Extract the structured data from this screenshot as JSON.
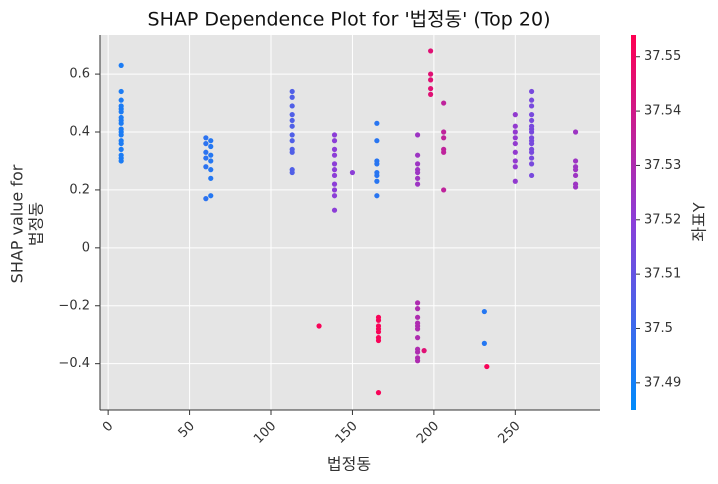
{
  "chart_data": {
    "type": "scatter",
    "title": "SHAP Dependence Plot for '법정동' (Top 20)",
    "xlabel": "법정동",
    "ylabel": [
      "SHAP value for",
      "법정동"
    ],
    "x": [
      8,
      8,
      8,
      8,
      8,
      8,
      8,
      8,
      8,
      8,
      8,
      8,
      8,
      8,
      8,
      8,
      8,
      8,
      60,
      60,
      60,
      60,
      60,
      60,
      63,
      63,
      63,
      63,
      63,
      63,
      63,
      113,
      113,
      113,
      113,
      113,
      113,
      113,
      113,
      113,
      113,
      113,
      113,
      139,
      139,
      139,
      139,
      139,
      139,
      139,
      139,
      139,
      139,
      139,
      129.5,
      150,
      165,
      165,
      165,
      165,
      165,
      165,
      165,
      165,
      166,
      166,
      166,
      166,
      166,
      166,
      166,
      166,
      190,
      190,
      190,
      190,
      190,
      190,
      190,
      190,
      190,
      190,
      190,
      190,
      190,
      190,
      190,
      190,
      190,
      190,
      194,
      198,
      198,
      198,
      198,
      198,
      206,
      206,
      206,
      206,
      206,
      206,
      231,
      231,
      232.5,
      250,
      250,
      250,
      250,
      250,
      250,
      250,
      250,
      250,
      260,
      260,
      260,
      260,
      260,
      260,
      260,
      260,
      260,
      260,
      260,
      260,
      260,
      260,
      260,
      260,
      287,
      287,
      287,
      287,
      287,
      287,
      287
    ],
    "y": [
      0.63,
      0.54,
      0.51,
      0.49,
      0.48,
      0.47,
      0.45,
      0.44,
      0.43,
      0.41,
      0.4,
      0.39,
      0.37,
      0.36,
      0.34,
      0.32,
      0.31,
      0.3,
      0.38,
      0.36,
      0.33,
      0.31,
      0.28,
      0.17,
      0.37,
      0.35,
      0.32,
      0.3,
      0.27,
      0.24,
      0.18,
      0.54,
      0.52,
      0.49,
      0.46,
      0.44,
      0.42,
      0.39,
      0.37,
      0.34,
      0.33,
      0.27,
      0.26,
      0.39,
      0.37,
      0.34,
      0.32,
      0.29,
      0.27,
      0.25,
      0.22,
      0.2,
      0.18,
      0.13,
      -0.27,
      0.26,
      0.43,
      0.37,
      0.3,
      0.29,
      0.26,
      0.25,
      0.23,
      0.18,
      -0.24,
      -0.25,
      -0.27,
      -0.28,
      -0.29,
      -0.31,
      -0.32,
      -0.5,
      0.39,
      0.32,
      0.29,
      0.27,
      0.26,
      0.24,
      0.22,
      -0.19,
      -0.21,
      -0.24,
      -0.26,
      -0.27,
      -0.28,
      -0.31,
      -0.35,
      -0.36,
      -0.38,
      -0.39,
      -0.355,
      0.68,
      0.6,
      0.58,
      0.55,
      0.53,
      0.5,
      0.4,
      0.38,
      0.34,
      0.33,
      0.2,
      -0.22,
      -0.33,
      -0.41,
      0.46,
      0.42,
      0.4,
      0.38,
      0.36,
      0.33,
      0.3,
      0.28,
      0.23,
      0.54,
      0.51,
      0.49,
      0.46,
      0.44,
      0.42,
      0.41,
      0.4,
      0.38,
      0.37,
      0.36,
      0.34,
      0.33,
      0.31,
      0.29,
      0.25,
      0.4,
      0.3,
      0.28,
      0.27,
      0.25,
      0.22,
      0.21
    ],
    "color_values": [
      37.492,
      37.492,
      37.492,
      37.492,
      37.492,
      37.492,
      37.492,
      37.492,
      37.492,
      37.492,
      37.492,
      37.492,
      37.492,
      37.492,
      37.492,
      37.492,
      37.492,
      37.492,
      37.496,
      37.496,
      37.496,
      37.496,
      37.496,
      37.496,
      37.494,
      37.494,
      37.494,
      37.494,
      37.494,
      37.494,
      37.494,
      37.505,
      37.505,
      37.505,
      37.505,
      37.505,
      37.505,
      37.505,
      37.505,
      37.505,
      37.505,
      37.505,
      37.505,
      37.52,
      37.52,
      37.52,
      37.52,
      37.52,
      37.52,
      37.52,
      37.52,
      37.52,
      37.52,
      37.52,
      37.552,
      37.52,
      37.495,
      37.495,
      37.495,
      37.495,
      37.495,
      37.495,
      37.495,
      37.495,
      37.552,
      37.552,
      37.552,
      37.552,
      37.552,
      37.552,
      37.552,
      37.552,
      37.525,
      37.525,
      37.525,
      37.525,
      37.525,
      37.525,
      37.525,
      37.53,
      37.53,
      37.53,
      37.53,
      37.53,
      37.53,
      37.53,
      37.53,
      37.53,
      37.53,
      37.53,
      37.545,
      37.545,
      37.545,
      37.545,
      37.545,
      37.545,
      37.535,
      37.535,
      37.535,
      37.535,
      37.535,
      37.535,
      37.494,
      37.494,
      37.552,
      37.522,
      37.522,
      37.522,
      37.522,
      37.522,
      37.522,
      37.522,
      37.522,
      37.522,
      37.515,
      37.515,
      37.515,
      37.515,
      37.515,
      37.515,
      37.515,
      37.515,
      37.515,
      37.515,
      37.515,
      37.515,
      37.515,
      37.515,
      37.515,
      37.515,
      37.525,
      37.525,
      37.525,
      37.525,
      37.525,
      37.525,
      37.525
    ],
    "xlim": [
      -5,
      302
    ],
    "ylim": [
      -0.56,
      0.735
    ],
    "xticks": [
      0,
      50,
      100,
      150,
      200,
      250
    ],
    "yticks": [
      {
        "value": -0.4,
        "label": "−0.4"
      },
      {
        "value": -0.2,
        "label": "−0.2"
      },
      0.0,
      0.2,
      0.4,
      0.6
    ],
    "grid": true,
    "colormap": [
      "#008bfb",
      "#8a3fd9",
      "#ff0051"
    ],
    "colorbar": {
      "label": "좌표Y",
      "lim": [
        37.485,
        37.554
      ],
      "ticks": [
        37.49,
        37.5,
        37.51,
        37.52,
        37.53,
        37.54,
        37.55
      ]
    }
  }
}
